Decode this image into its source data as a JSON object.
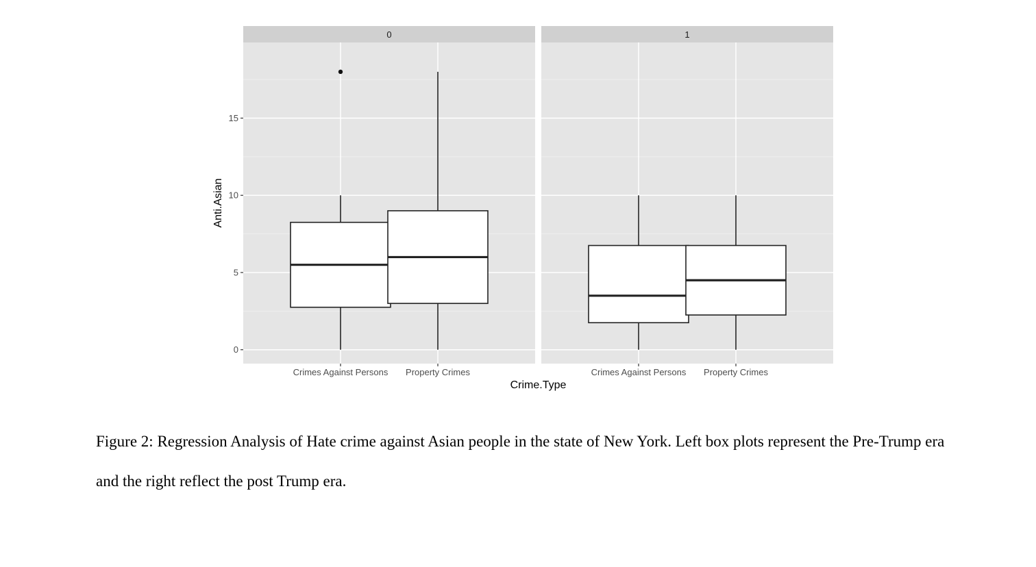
{
  "chart_data": {
    "type": "boxplot",
    "xlabel": "Crime.Type",
    "ylabel": "Anti.Asian",
    "ylim": [
      -0.9,
      19.9
    ],
    "yticks": [
      0,
      5,
      10,
      15
    ],
    "grid": true,
    "facets": [
      {
        "label": "0",
        "boxes": [
          {
            "category": "Crimes Against Persons",
            "whisker_low": 0,
            "q1": 2.75,
            "median": 5.5,
            "q3": 8.25,
            "whisker_high": 10,
            "outliers": [
              18
            ]
          },
          {
            "category": "Property Crimes",
            "whisker_low": 0,
            "q1": 3,
            "median": 6,
            "q3": 9,
            "whisker_high": 18,
            "outliers": []
          }
        ]
      },
      {
        "label": "1",
        "boxes": [
          {
            "category": "Crimes Against Persons",
            "whisker_low": 0,
            "q1": 1.75,
            "median": 3.5,
            "q3": 6.75,
            "whisker_high": 10,
            "outliers": []
          },
          {
            "category": "Property Crimes",
            "whisker_low": 0,
            "q1": 2.25,
            "median": 4.5,
            "q3": 6.75,
            "whisker_high": 10,
            "outliers": []
          }
        ]
      }
    ]
  },
  "caption": "Figure 2: Regression Analysis of Hate crime against Asian people in the state of New York. Left box plots represent the Pre-Trump era and the right reflect the post Trump era.",
  "colors": {
    "panel_bg": "#e5e5e5",
    "strip_bg": "#d0d0d0",
    "box_fill": "#ffffff",
    "box_stroke": "#222222"
  }
}
